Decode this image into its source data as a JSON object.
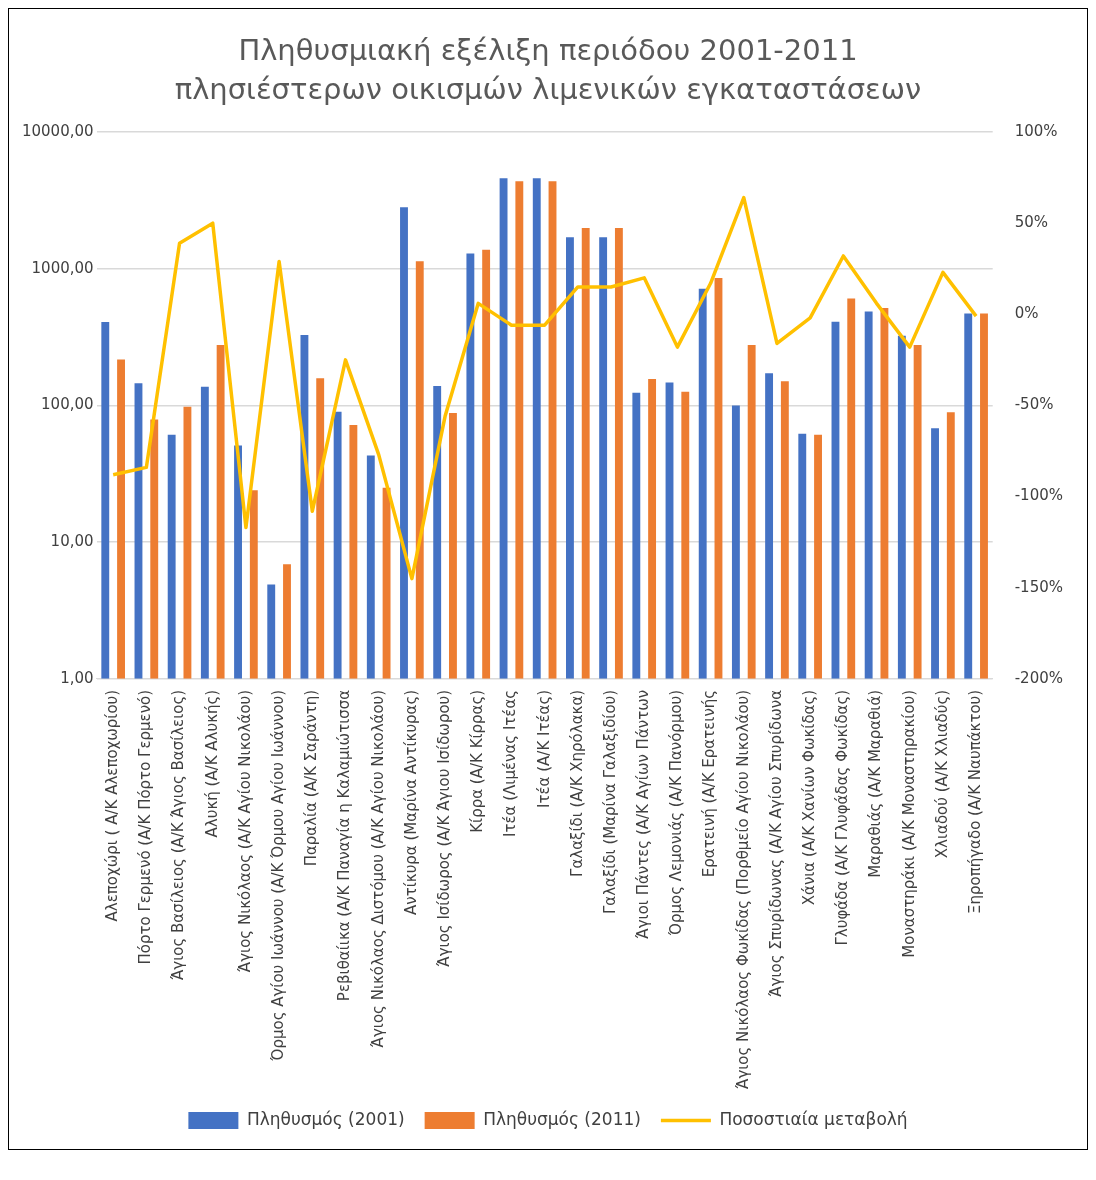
{
  "chart_data": {
    "type": "bar",
    "title": "Πληθυσμιακή εξέλιξη περιόδου 2001-2011 πλησιέστερων οικισμών λιμενικών εγκαταστάσεων",
    "categories": [
      "Αλεποχώρι ( Α/Κ Αλεποχωρίου)",
      "Πόρτο Γερμενό (Α/Κ Πόρτο Γερμενό)",
      "Άγιος Βασίλειος (Α/Κ Άγιος Βασίλειος)",
      "Αλυκή (Α/Κ Αλυκής)",
      "Άγιος Νικόλαος (Α/Κ Αγίου Νικολάου)",
      "Όρμος Αγίου Ιωάννου (Α/Κ Όρμου Αγίου Ιωάννου)",
      "Παραλία (Α/Κ Σαράντη)",
      "Ρεβιθαίικα (Α/Κ Παναγία η Καλαμιώτισσα",
      "Άγιος Νικόλαος Διστόμου (Α/Κ Αγίου Νικολάου)",
      "Αντίκυρα (Μαρίνα Αντίκυρας)",
      "Άγιος Ισίδωρος (Α/Κ Άγιου Ισίδωρου)",
      "Κίρρα (Α/Κ Κίρρας)",
      "Ιτέα (Λιμένας Ιτέας",
      "Ιτέα (Α/Κ Ιτέας)",
      "Γαλαξίδι (Α/Κ Χηρόλακα)",
      "Γαλαξίδι (Μαρίνα Γαλαξιδίου)",
      "Άγιοι Πάντες (Α/Κ Αγίων Πάντων",
      "Όρμος Λεμονιάς (Α/Κ Πανόρμου)",
      "Ερατεινή (Α/Κ Ερατεινής",
      "Άγιος Νικόλαος Φωκίδας (Πορθμείο Αγίου Νικολάου)",
      "Άγιος Σπυρίδωνας (Α/Κ Αγίου Σπυρίδωνα",
      "Χάνια (Α/Κ Χανίων Φωκίδας)",
      "Γλυφάδα (Α/Κ Γλυφάδας Φωκίδας)",
      "Μαραθιάς (Α/Κ Μαραθιά)",
      "Μοναστηράκι (Α/Κ Μοναστηρακίου)",
      "Χλιαδού (Α/Κ Χλιαδύς)",
      "Ξηροπήγαδο (Α/Κ Ναυπάκτου)"
    ],
    "series": [
      {
        "name": "Πληθυσμός (2001)",
        "color": "#4472c4",
        "values": [
          407,
          145,
          61,
          137,
          51,
          4.9,
          327,
          90,
          43,
          2810,
          139,
          1290,
          4590,
          4590,
          1696,
          1696,
          124,
          147,
          714,
          100,
          172,
          62,
          410,
          487,
          323,
          68,
          470
        ]
      },
      {
        "name": "Πληθυσμός (2011)",
        "color": "#ed7d31",
        "values": [
          217,
          79,
          98,
          277,
          24,
          6.9,
          158,
          72,
          25,
          1132,
          88,
          1376,
          4364,
          4364,
          1987,
          1987,
          156,
          126,
          855,
          277,
          150,
          61,
          605,
          516,
          277,
          89,
          470
        ]
      },
      {
        "name": "Ποσοστιαία μεταβολή",
        "type": "line",
        "axis": "y2",
        "color": "#ffc000",
        "values": [
          -88,
          -84,
          39,
          50,
          -117,
          29,
          -108,
          -25,
          -77,
          -145,
          -56,
          6,
          -6,
          -6,
          15,
          15,
          20,
          -18,
          17,
          64,
          -16,
          -2,
          32,
          6,
          -18,
          23,
          -1
        ]
      }
    ],
    "log": "y",
    "ylim": [
      1,
      10000
    ],
    "yticks": [
      {
        "value": 1,
        "label": "1,00"
      },
      {
        "value": 10,
        "label": "10,00"
      },
      {
        "value": 100,
        "label": "100,00"
      },
      {
        "value": 1000,
        "label": "1000,00"
      },
      {
        "value": 10000,
        "label": "10000,00"
      }
    ],
    "y2lim": [
      -200,
      100
    ],
    "y2ticks": [
      {
        "value": -200,
        "label": "-200%"
      },
      {
        "value": -150,
        "label": "-150%"
      },
      {
        "value": -100,
        "label": "-100%"
      },
      {
        "value": -50,
        "label": "-50%"
      },
      {
        "value": 0,
        "label": "0%"
      },
      {
        "value": 50,
        "label": "50%"
      },
      {
        "value": 100,
        "label": "100%"
      }
    ],
    "grid": "y",
    "legend": "bottom",
    "marker": "none",
    "line_style": "solid"
  }
}
